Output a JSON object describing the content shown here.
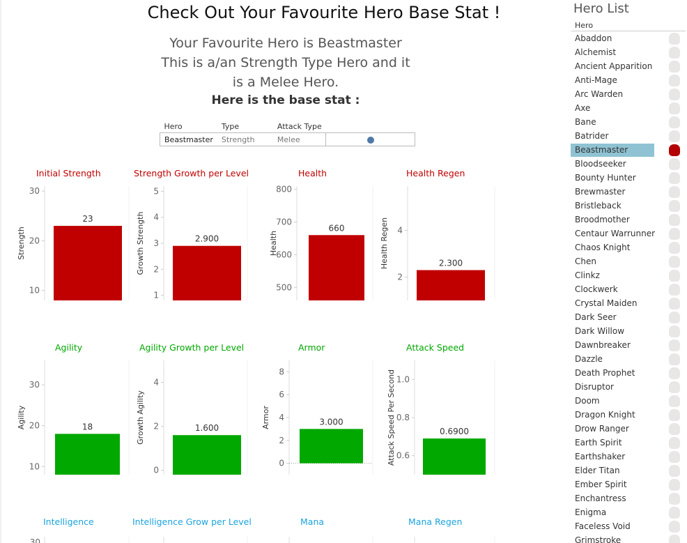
{
  "title": "Check Out Your Favourite Hero Base Stat !",
  "intro": {
    "line1": "Your Favourite Hero is Beastmaster",
    "line2": "This is a/an Strength Type Hero and it",
    "line3": "is a Melee Hero.",
    "bold": "Here is the base stat :"
  },
  "info_table": {
    "headers": [
      "Hero",
      "Type",
      "Attack Type"
    ],
    "values": [
      "Beastmaster",
      "Strength",
      "Melee"
    ],
    "dot_color": "#4e79a7"
  },
  "colors": {
    "strength": "#c00000",
    "agility": "#00a800",
    "intelligence": "#1ba3dd"
  },
  "chart_data": [
    {
      "type": "bar",
      "title": "Initial Strength",
      "ylabel": "Strength",
      "values": [
        23
      ],
      "value_label": "23",
      "ylim": [
        8,
        31
      ],
      "ticks": [
        10,
        20,
        30
      ],
      "tick_labels": [
        "10",
        "20",
        "30"
      ],
      "color": "#c00000"
    },
    {
      "type": "bar",
      "title": "Strength Growth per Level",
      "ylabel": "Growth Strength",
      "values": [
        2.9
      ],
      "value_label": "2.900",
      "ylim": [
        0.8,
        5.2
      ],
      "ticks": [
        1,
        2,
        3,
        4,
        5
      ],
      "tick_labels": [
        "1",
        "2",
        "3",
        "4",
        "5"
      ],
      "color": "#c00000"
    },
    {
      "type": "bar",
      "title": "Health",
      "ylabel": "Health",
      "values": [
        660
      ],
      "value_label": "660",
      "ylim": [
        460,
        810
      ],
      "ticks": [
        500,
        600,
        700,
        800
      ],
      "tick_labels": [
        "500",
        "600",
        "700",
        "800"
      ],
      "color": "#c00000"
    },
    {
      "type": "bar",
      "title": "Health Regen",
      "ylabel": "Health Regen",
      "values": [
        2.3
      ],
      "value_label": "2.300",
      "ylim": [
        1.0,
        5.9
      ],
      "ticks": [
        2,
        4
      ],
      "tick_labels": [
        "2",
        "4"
      ],
      "color": "#c00000"
    },
    {
      "type": "bar",
      "title": "Agility",
      "ylabel": "Agility",
      "values": [
        18
      ],
      "value_label": "18",
      "ylim": [
        8,
        36
      ],
      "ticks": [
        10,
        20,
        30
      ],
      "tick_labels": [
        "10",
        "20",
        "30"
      ],
      "color": "#00a800"
    },
    {
      "type": "bar",
      "title": "Agility Growth per Level",
      "ylabel": "Growth Agility",
      "values": [
        1.6
      ],
      "value_label": "1.600",
      "ylim": [
        -0.2,
        5.0
      ],
      "ticks": [
        0,
        2,
        4
      ],
      "tick_labels": [
        "0",
        "2",
        "4"
      ],
      "color": "#00a800"
    },
    {
      "type": "bar",
      "title": "Armor",
      "ylabel": "Armor",
      "values": [
        3.0
      ],
      "value_label": "3.000",
      "ylim": [
        -1.0,
        9.0
      ],
      "ticks": [
        0,
        2,
        4,
        6,
        8
      ],
      "tick_labels": [
        "0",
        "2",
        "4",
        "6",
        "8"
      ],
      "color": "#00a800",
      "zero_line": true
    },
    {
      "type": "bar",
      "title": "Attack Speed",
      "ylabel": "Attack Speed Per Second",
      "values": [
        0.69
      ],
      "value_label": "0.6900",
      "ylim": [
        0.5,
        1.1
      ],
      "ticks": [
        0.6,
        0.8,
        1.0
      ],
      "tick_labels": [
        "0.6",
        "0.8",
        "1.0"
      ],
      "color": "#00a800"
    },
    {
      "type": "bar",
      "title": "Intelligence",
      "color": "#1ba3dd",
      "tick_labels": [
        "30"
      ]
    },
    {
      "type": "bar",
      "title": "Intelligence Grow per Level",
      "color": "#1ba3dd"
    },
    {
      "type": "bar",
      "title": "Mana",
      "color": "#1ba3dd"
    },
    {
      "type": "bar",
      "title": "Mana Regen",
      "color": "#1ba3dd"
    }
  ],
  "sidebar": {
    "title": "Hero List",
    "column_header": "Hero",
    "selected": "Beastmaster",
    "heroes": [
      "Abaddon",
      "Alchemist",
      "Ancient Apparition",
      "Anti-Mage",
      "Arc Warden",
      "Axe",
      "Bane",
      "Batrider",
      "Beastmaster",
      "Bloodseeker",
      "Bounty Hunter",
      "Brewmaster",
      "Bristleback",
      "Broodmother",
      "Centaur Warrunner",
      "Chaos Knight",
      "Chen",
      "Clinkz",
      "Clockwerk",
      "Crystal Maiden",
      "Dark Seer",
      "Dark Willow",
      "Dawnbreaker",
      "Dazzle",
      "Death Prophet",
      "Disruptor",
      "Doom",
      "Dragon Knight",
      "Drow Ranger",
      "Earth Spirit",
      "Earthshaker",
      "Elder Titan",
      "Ember Spirit",
      "Enchantress",
      "Enigma",
      "Faceless Void",
      "Grimstroke"
    ]
  }
}
